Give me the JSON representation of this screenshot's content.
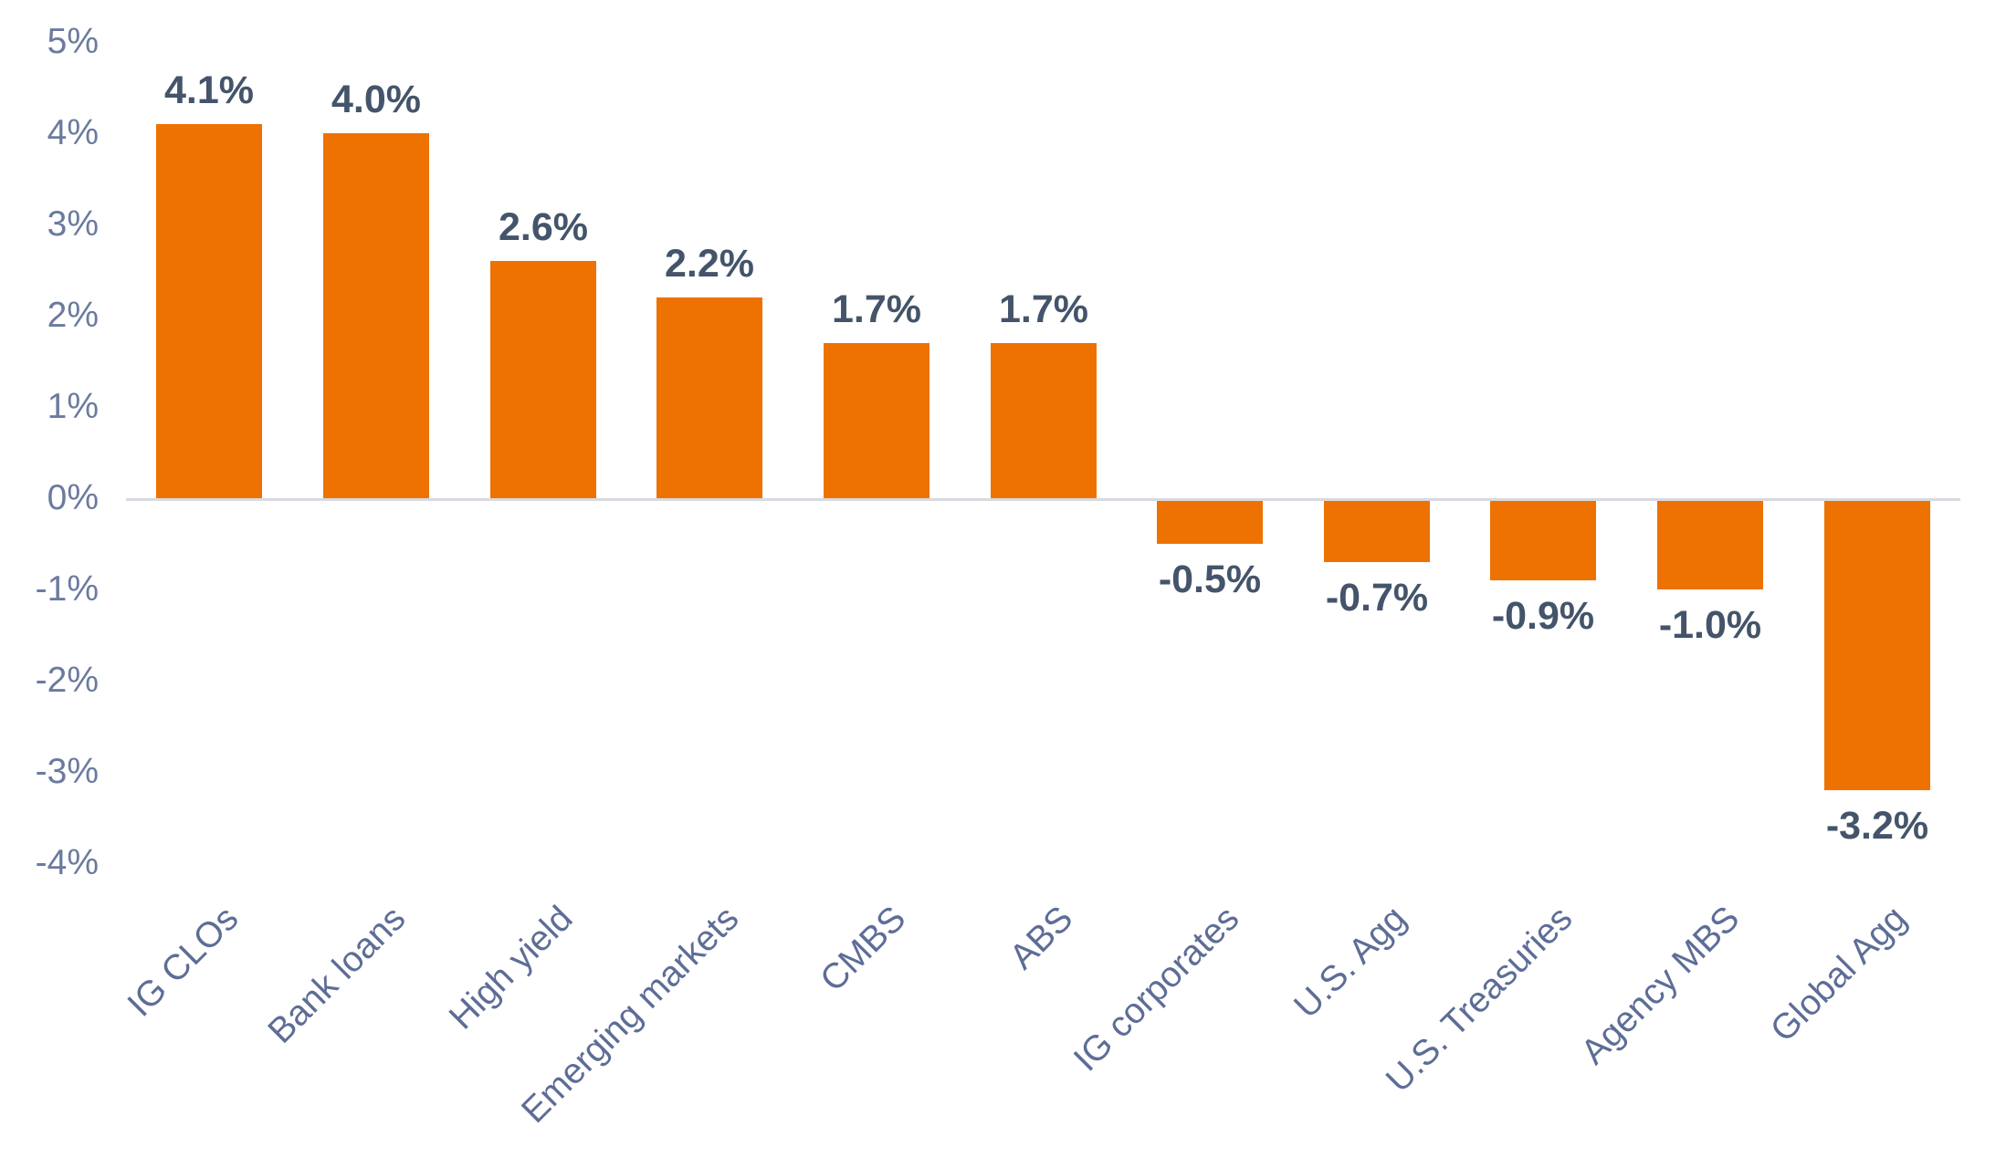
{
  "chart_data": {
    "type": "bar",
    "title": "",
    "subtitle": "",
    "xlabel": "",
    "ylabel": "",
    "legend": "none",
    "gridlines": "zero-baseline-only",
    "ylim": [
      -4,
      5
    ],
    "categories": [
      "IG CLOs",
      "Bank loans",
      "High yield",
      "Emerging markets",
      "CMBS",
      "ABS",
      "IG corporates",
      "U.S. Agg",
      "U.S. Treasuries",
      "Agency MBS",
      "Global Agg"
    ],
    "values": [
      4.1,
      4.0,
      2.6,
      2.2,
      1.7,
      1.7,
      -0.5,
      -0.7,
      -0.9,
      -1.0,
      -3.2
    ],
    "value_labels": [
      "4.1%",
      "4.0%",
      "2.6%",
      "2.2%",
      "1.7%",
      "1.7%",
      "-0.5%",
      "-0.7%",
      "-0.9%",
      "-1.0%",
      "-3.2%"
    ],
    "ytick_labels": [
      "5%",
      "4%",
      "3%",
      "2%",
      "1%",
      "0%",
      "-1%",
      "-2%",
      "-3%",
      "-4%"
    ],
    "ytick_values": [
      5,
      4,
      3,
      2,
      1,
      0,
      -1,
      -2,
      -3,
      -4
    ],
    "colors": {
      "bar": "#EE7202",
      "value_label": "#44546A",
      "axis_tick_label": "#6B7A9F",
      "category_label": "#5D6D96",
      "baseline": "#D8DAE0"
    }
  }
}
